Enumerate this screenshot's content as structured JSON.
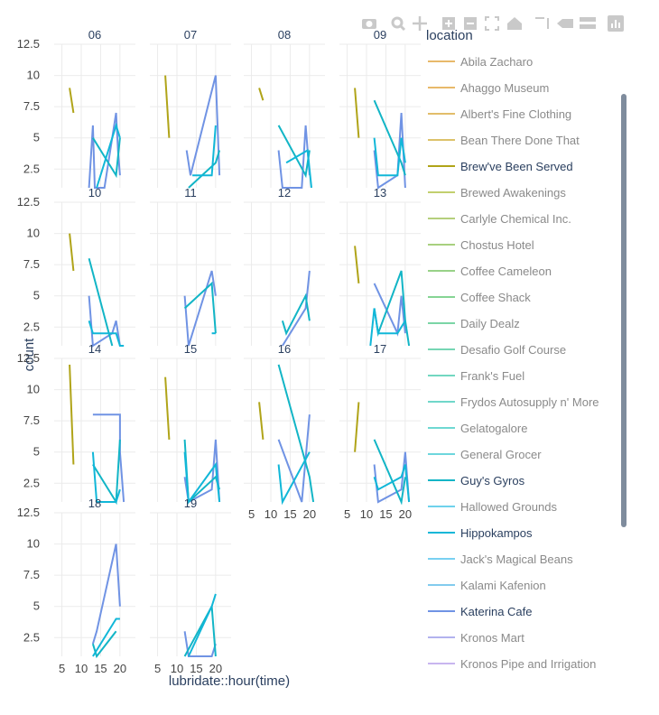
{
  "chart_data": {
    "type": "line",
    "xlabel": "lubridate::hour(time)",
    "ylabel": "count",
    "x_ticks": [
      5,
      10,
      15,
      20
    ],
    "y_ticks": [
      2.5,
      5,
      7.5,
      10,
      12.5
    ],
    "xlim": [
      3,
      24
    ],
    "ylim": [
      1,
      12.5
    ],
    "grid": true,
    "legend_position": "right",
    "legend": {
      "title": "location",
      "items": [
        {
          "name": "Abila Zacharo",
          "color": "#e8b96a",
          "active": false
        },
        {
          "name": "Ahaggo Museum",
          "color": "#e8b96a",
          "active": false
        },
        {
          "name": "Albert's Fine Clothing",
          "color": "#e2bd6a",
          "active": false
        },
        {
          "name": "Bean There Done That",
          "color": "#dcc26a",
          "active": false
        },
        {
          "name": "Brew've Been Served",
          "color": "#b0a419",
          "active": true
        },
        {
          "name": "Brewed Awakenings",
          "color": "#c2d06e",
          "active": false
        },
        {
          "name": "Carlyle Chemical Inc.",
          "color": "#b5cf7c",
          "active": false
        },
        {
          "name": "Chostus Hotel",
          "color": "#a8d07f",
          "active": false
        },
        {
          "name": "Coffee Cameleon",
          "color": "#98d288",
          "active": false
        },
        {
          "name": "Coffee Shack",
          "color": "#86d494",
          "active": false
        },
        {
          "name": "Daily Dealz",
          "color": "#7bd5a6",
          "active": false
        },
        {
          "name": "Desafio Golf Course",
          "color": "#76d6b4",
          "active": false
        },
        {
          "name": "Frank's Fuel",
          "color": "#72d7c0",
          "active": false
        },
        {
          "name": "Frydos Autosupply n' More",
          "color": "#70d7ca",
          "active": false
        },
        {
          "name": "Gelatogalore",
          "color": "#6fd8d2",
          "active": false
        },
        {
          "name": "General Grocer",
          "color": "#6dd6dd",
          "active": false
        },
        {
          "name": "Guy's Gyros",
          "color": "#12b5c6",
          "active": true
        },
        {
          "name": "Hallowed Grounds",
          "color": "#6fd2ec",
          "active": false
        },
        {
          "name": "Hippokampos",
          "color": "#11b7d8",
          "active": true
        },
        {
          "name": "Jack's Magical Beans",
          "color": "#79d0f2",
          "active": false
        },
        {
          "name": "Kalami Kafenion",
          "color": "#82cbee",
          "active": false
        },
        {
          "name": "Katerina Cafe",
          "color": "#7093e4",
          "active": true
        },
        {
          "name": "Kronos Mart",
          "color": "#b2b2ee",
          "active": false
        },
        {
          "name": "Kronos Pipe and Irrigation",
          "color": "#c8b6ef",
          "active": false
        }
      ]
    },
    "facets": [
      {
        "label": "06",
        "series": [
          {
            "name": "Brew've Been Served",
            "x": [
              7,
              8
            ],
            "y": [
              9,
              7
            ]
          },
          {
            "name": "Katerina Cafe",
            "x": [
              12,
              13,
              13.5,
              16,
              19,
              19.5,
              20
            ],
            "y": [
              1,
              6,
              1,
              1,
              7,
              4,
              2
            ]
          },
          {
            "name": "Guy's Gyros",
            "x": [
              13,
              19,
              20
            ],
            "y": [
              5,
              2,
              5
            ]
          },
          {
            "name": "Hippokampos",
            "x": [
              14,
              19,
              20
            ],
            "y": [
              1,
              6,
              5
            ]
          }
        ]
      },
      {
        "label": "07",
        "series": [
          {
            "name": "Brew've Been Served",
            "x": [
              7,
              8
            ],
            "y": [
              10,
              5
            ]
          },
          {
            "name": "Katerina Cafe",
            "x": [
              12.5,
              13.5,
              20,
              21
            ],
            "y": [
              4,
              2,
              10,
              2
            ]
          },
          {
            "name": "Guy's Gyros",
            "x": [
              13,
              20,
              21
            ],
            "y": [
              1,
              3,
              4
            ]
          },
          {
            "name": "Hippokampos",
            "x": [
              14,
              19,
              20
            ],
            "y": [
              2,
              2,
              6
            ]
          }
        ]
      },
      {
        "label": "08",
        "series": [
          {
            "name": "Brew've Been Served",
            "x": [
              7,
              8
            ],
            "y": [
              9,
              8
            ]
          },
          {
            "name": "Katerina Cafe",
            "x": [
              12,
              13,
              18,
              19,
              20
            ],
            "y": [
              4,
              1,
              1,
              6,
              2
            ]
          },
          {
            "name": "Guy's Gyros",
            "x": [
              12,
              19,
              20
            ],
            "y": [
              6,
              2,
              4
            ]
          },
          {
            "name": "Hippokampos",
            "x": [
              14,
              19.5,
              20.5
            ],
            "y": [
              3,
              4,
              1
            ]
          }
        ]
      },
      {
        "label": "09",
        "series": [
          {
            "name": "Brew've Been Served",
            "x": [
              7,
              8
            ],
            "y": [
              9,
              5
            ]
          },
          {
            "name": "Katerina Cafe",
            "x": [
              12,
              13,
              18,
              19,
              20
            ],
            "y": [
              4,
              1,
              2,
              7,
              1
            ]
          },
          {
            "name": "Guy's Gyros",
            "x": [
              12,
              19,
              20
            ],
            "y": [
              8,
              3,
              2
            ]
          },
          {
            "name": "Hippokampos",
            "x": [
              12,
              13,
              18,
              19,
              20
            ],
            "y": [
              5,
              2,
              2,
              5,
              3
            ]
          }
        ]
      },
      {
        "label": "10",
        "series": [
          {
            "name": "Brew've Been Served",
            "x": [
              7,
              8
            ],
            "y": [
              10,
              7
            ]
          },
          {
            "name": "Katerina Cafe",
            "x": [
              12,
              13,
              18,
              19,
              20,
              21
            ],
            "y": [
              5,
              1,
              2,
              3,
              1,
              1
            ]
          },
          {
            "name": "Guy's Gyros",
            "x": [
              12,
              18
            ],
            "y": [
              8,
              1
            ]
          },
          {
            "name": "Hippokampos",
            "x": [
              12,
              13,
              19,
              20,
              21
            ],
            "y": [
              3,
              2,
              2,
              1,
              1
            ]
          }
        ]
      },
      {
        "label": "11",
        "series": [
          {
            "name": "Katerina Cafe",
            "x": [
              12,
              13,
              19,
              20
            ],
            "y": [
              5,
              1,
              7,
              5
            ]
          },
          {
            "name": "Guy's Gyros",
            "x": [
              12,
              19,
              20
            ],
            "y": [
              4,
              6,
              2
            ]
          },
          {
            "name": "Hippokampos",
            "x": [
              19,
              20
            ],
            "y": [
              2,
              2
            ]
          }
        ]
      },
      {
        "label": "12",
        "series": [
          {
            "name": "Katerina Cafe",
            "x": [
              13,
              19,
              20
            ],
            "y": [
              1,
              4,
              7
            ]
          },
          {
            "name": "Guy's Gyros",
            "x": [
              13,
              14,
              19,
              20
            ],
            "y": [
              3,
              2,
              5,
              3
            ]
          }
        ]
      },
      {
        "label": "13",
        "series": [
          {
            "name": "Brew've Been Served",
            "x": [
              7,
              8
            ],
            "y": [
              9,
              6
            ]
          },
          {
            "name": "Katerina Cafe",
            "x": [
              12,
              18,
              19,
              20
            ],
            "y": [
              6,
              2,
              5,
              2
            ]
          },
          {
            "name": "Guy's Gyros",
            "x": [
              12,
              13,
              19,
              20,
              21
            ],
            "y": [
              4,
              2,
              7,
              3,
              1
            ]
          },
          {
            "name": "Hippokampos",
            "x": [
              11,
              12,
              13,
              18,
              20
            ],
            "y": [
              1,
              4,
              2,
              2,
              3
            ]
          }
        ]
      },
      {
        "label": "14",
        "series": [
          {
            "name": "Brew've Been Served",
            "x": [
              7,
              8
            ],
            "y": [
              12,
              4
            ]
          },
          {
            "name": "Katerina Cafe",
            "x": [
              13,
              20,
              20,
              21
            ],
            "y": [
              8,
              8,
              5,
              1
            ]
          },
          {
            "name": "Guy's Gyros",
            "x": [
              13,
              19,
              20
            ],
            "y": [
              4,
              1,
              6
            ]
          },
          {
            "name": "Hippokampos",
            "x": [
              13,
              14,
              19,
              20
            ],
            "y": [
              5,
              1,
              1,
              2
            ]
          }
        ]
      },
      {
        "label": "15",
        "series": [
          {
            "name": "Brew've Been Served",
            "x": [
              7,
              8
            ],
            "y": [
              11,
              6
            ]
          },
          {
            "name": "Katerina Cafe",
            "x": [
              12,
              13,
              19,
              20,
              21
            ],
            "y": [
              3,
              1,
              2,
              6,
              1
            ]
          },
          {
            "name": "Guy's Gyros",
            "x": [
              12,
              13,
              20,
              21
            ],
            "y": [
              6,
              1,
              3,
              2
            ]
          },
          {
            "name": "Hippokampos",
            "x": [
              12,
              13,
              20,
              21
            ],
            "y": [
              5,
              1,
              4,
              1
            ]
          }
        ]
      },
      {
        "label": "16",
        "series": [
          {
            "name": "Brew've Been Served",
            "x": [
              7,
              8
            ],
            "y": [
              9,
              6
            ]
          },
          {
            "name": "Katerina Cafe",
            "x": [
              12,
              18,
              20
            ],
            "y": [
              6,
              1,
              8
            ]
          },
          {
            "name": "Guy's Gyros",
            "x": [
              12,
              20,
              21
            ],
            "y": [
              12,
              3,
              1
            ]
          },
          {
            "name": "Hippokampos",
            "x": [
              12,
              13,
              20
            ],
            "y": [
              4,
              1,
              5
            ]
          }
        ]
      },
      {
        "label": "17",
        "series": [
          {
            "name": "Brew've Been Served",
            "x": [
              7,
              8
            ],
            "y": [
              5,
              9
            ]
          },
          {
            "name": "Katerina Cafe",
            "x": [
              12,
              13,
              19,
              20,
              21
            ],
            "y": [
              4,
              1,
              2,
              5,
              1
            ]
          },
          {
            "name": "Guy's Gyros",
            "x": [
              12,
              19,
              20
            ],
            "y": [
              6,
              1,
              3
            ]
          },
          {
            "name": "Hippokampos",
            "x": [
              12,
              13,
              19,
              20,
              21
            ],
            "y": [
              3,
              2,
              3,
              4,
              1
            ]
          }
        ]
      },
      {
        "label": "18",
        "series": [
          {
            "name": "Katerina Cafe",
            "x": [
              13,
              14,
              19,
              20
            ],
            "y": [
              2,
              3,
              10,
              5
            ]
          },
          {
            "name": "Guy's Gyros",
            "x": [
              13,
              14,
              19
            ],
            "y": [
              2,
              1,
              3
            ]
          },
          {
            "name": "Hippokampos",
            "x": [
              13,
              19,
              20
            ],
            "y": [
              1,
              4,
              4
            ]
          }
        ]
      },
      {
        "label": "19",
        "series": [
          {
            "name": "Katerina Cafe",
            "x": [
              12,
              13,
              19,
              20
            ],
            "y": [
              3,
              1,
              1,
              2
            ]
          },
          {
            "name": "Guy's Gyros",
            "x": [
              12,
              19,
              20
            ],
            "y": [
              1,
              5,
              1
            ]
          },
          {
            "name": "Hippokampos",
            "x": [
              13,
              19,
              20
            ],
            "y": [
              1,
              5,
              6
            ]
          }
        ]
      }
    ]
  },
  "modebar": {
    "buttons": [
      "camera-icon",
      "zoom-icon",
      "pan-icon",
      "zoom-in-icon",
      "zoom-out-icon",
      "autoscale-icon",
      "reset-axes-icon",
      "spike-lines-icon",
      "hover-closest-icon",
      "hover-compare-icon",
      "plotly-logo-icon"
    ]
  }
}
